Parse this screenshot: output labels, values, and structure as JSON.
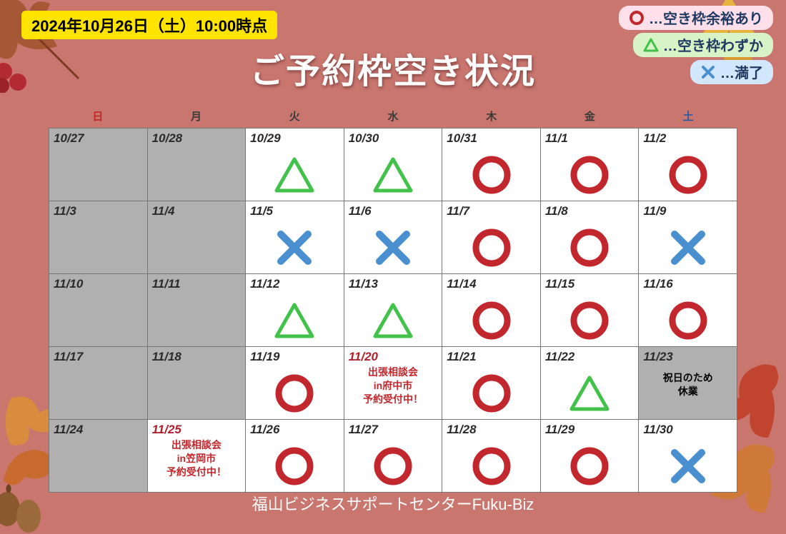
{
  "timestamp": "2024年10月26日（土）10:00時点",
  "title": "ご予約枠空き状況",
  "footer": "福山ビジネスサポートセンターFuku-Biz",
  "legend": {
    "circle": {
      "text": "…空き枠余裕あり",
      "bg": "#ffe0ea"
    },
    "triangle": {
      "text": "…空き枠わずか",
      "bg": "#d8f4c6"
    },
    "cross": {
      "text": "…満了",
      "bg": "#d2e7fd"
    }
  },
  "colors": {
    "circle": "#c1272d",
    "triangle": "#42c24a",
    "triangle_red": "#c1272d",
    "cross": "#4a8fcf",
    "dow_sun": "#c1272d",
    "dow_sat": "#2a5aa0",
    "dow_wk": "#3a3a3a",
    "closed_bg": "#b0b0b0"
  },
  "days_of_week": [
    "日",
    "月",
    "火",
    "水",
    "木",
    "金",
    "土"
  ],
  "cells": [
    {
      "date": "10/27",
      "kind": "closed"
    },
    {
      "date": "10/28",
      "kind": "closed"
    },
    {
      "date": "10/29",
      "kind": "triangle"
    },
    {
      "date": "10/30",
      "kind": "triangle"
    },
    {
      "date": "10/31",
      "kind": "circle"
    },
    {
      "date": "11/1",
      "kind": "circle"
    },
    {
      "date": "11/2",
      "kind": "circle"
    },
    {
      "date": "11/3",
      "kind": "closed"
    },
    {
      "date": "11/4",
      "kind": "closed"
    },
    {
      "date": "11/5",
      "kind": "cross"
    },
    {
      "date": "11/6",
      "kind": "cross"
    },
    {
      "date": "11/7",
      "kind": "circle"
    },
    {
      "date": "11/8",
      "kind": "circle"
    },
    {
      "date": "11/9",
      "kind": "cross"
    },
    {
      "date": "11/10",
      "kind": "closed"
    },
    {
      "date": "11/11",
      "kind": "closed"
    },
    {
      "date": "11/12",
      "kind": "triangle"
    },
    {
      "date": "11/13",
      "kind": "triangle"
    },
    {
      "date": "11/14",
      "kind": "circle"
    },
    {
      "date": "11/15",
      "kind": "circle"
    },
    {
      "date": "11/16",
      "kind": "circle"
    },
    {
      "date": "11/17",
      "kind": "closed"
    },
    {
      "date": "11/18",
      "kind": "closed"
    },
    {
      "date": "11/19",
      "kind": "circle"
    },
    {
      "date": "11/20",
      "kind": "note",
      "date_red": true,
      "note": "出張相談会\nin府中市\n予約受付中！",
      "note_color": "red"
    },
    {
      "date": "11/21",
      "kind": "circle"
    },
    {
      "date": "11/22",
      "kind": "triangle"
    },
    {
      "date": "11/23",
      "kind": "holiday",
      "note": "祝日のため\n休業",
      "note_color": "black"
    },
    {
      "date": "11/24",
      "kind": "closed"
    },
    {
      "date": "11/25",
      "kind": "note",
      "date_red": true,
      "note": "出張相談会\nin笠岡市\n予約受付中！",
      "note_color": "red"
    },
    {
      "date": "11/26",
      "kind": "circle"
    },
    {
      "date": "11/27",
      "kind": "circle"
    },
    {
      "date": "11/28",
      "kind": "circle"
    },
    {
      "date": "11/29",
      "kind": "circle"
    },
    {
      "date": "11/30",
      "kind": "cross"
    }
  ]
}
